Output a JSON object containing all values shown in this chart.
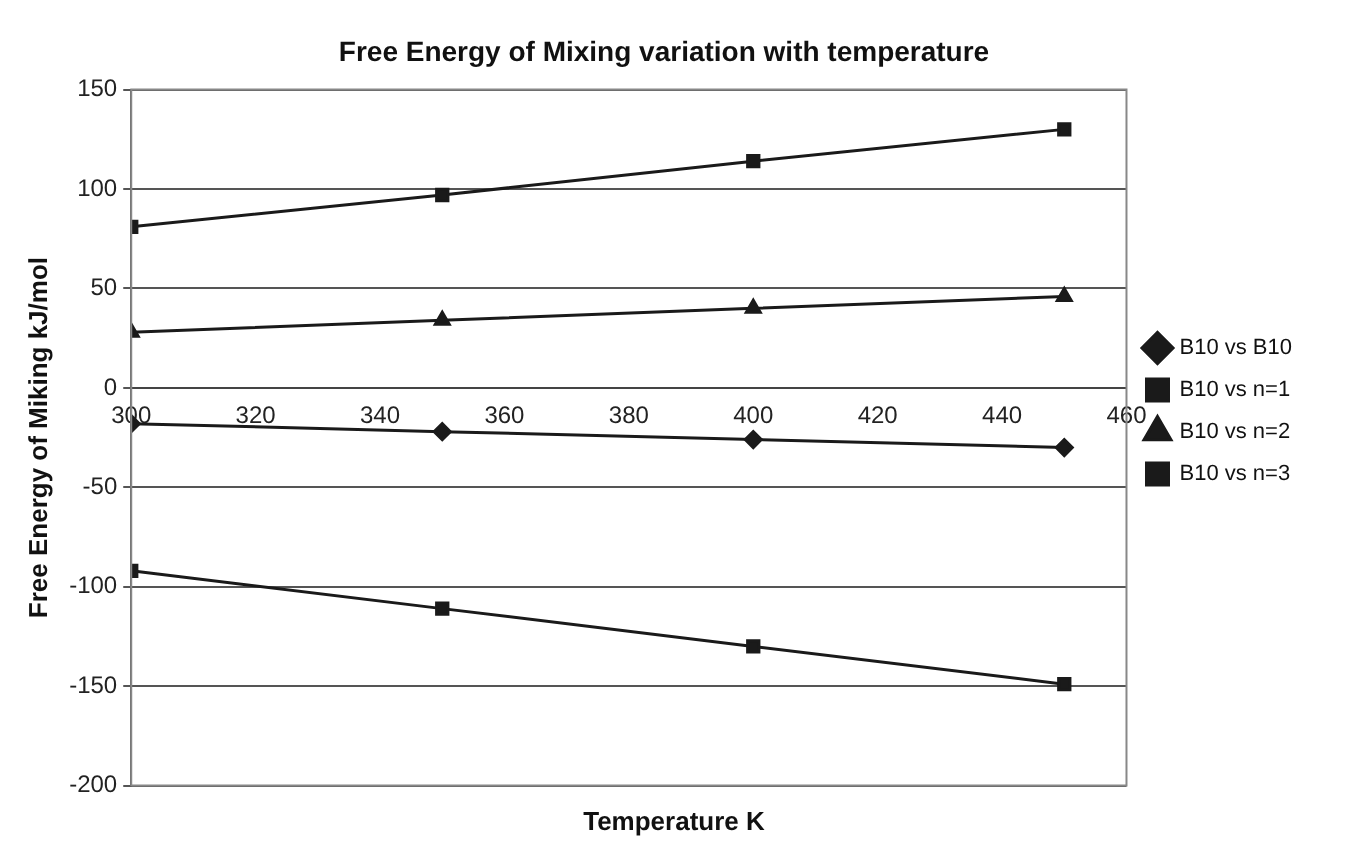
{
  "chart_data": {
    "type": "line",
    "title": "Free Energy of Mixing variation with temperature",
    "xlabel": "Temperature K",
    "ylabel": "Free Energy of Miking kJ/mol",
    "x": [
      300,
      350,
      400,
      450
    ],
    "series": [
      {
        "name": "B10 vs B10",
        "color": "#1a1a1a",
        "marker": "diamond",
        "values": [
          -18,
          -22,
          -26,
          -30
        ]
      },
      {
        "name": "B10 vs n=1",
        "color": "#1a1a1a",
        "marker": "square",
        "values": [
          81,
          97,
          114,
          130
        ]
      },
      {
        "name": "B10 vs n=2",
        "color": "#1a1a1a",
        "marker": "triangle",
        "values": [
          28,
          34,
          40,
          46
        ]
      },
      {
        "name": "B10 vs n=3",
        "color": "#1a1a1a",
        "marker": "square",
        "values": [
          -92,
          -111,
          -130,
          -149
        ]
      }
    ],
    "xlim": [
      300,
      460
    ],
    "xticks": [
      300,
      320,
      340,
      360,
      380,
      400,
      420,
      440,
      460
    ],
    "ylim": [
      -200,
      150
    ],
    "yticks": [
      -200,
      -150,
      -100,
      -50,
      0,
      50,
      100,
      150
    ],
    "grid": "y",
    "legend": "right",
    "line_style": "solid"
  }
}
